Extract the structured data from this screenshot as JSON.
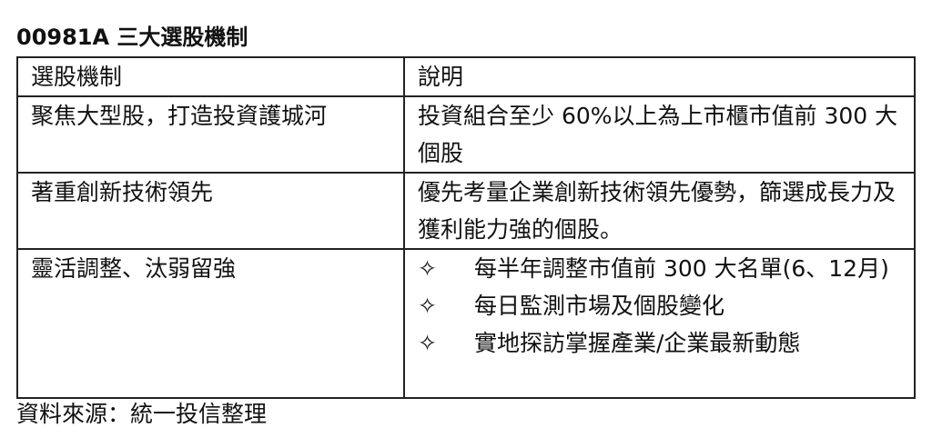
{
  "title": "00981A 三大選股機制",
  "table": {
    "headers": [
      "選股機制",
      "說明"
    ],
    "rows": [
      {
        "mechanism": "聚焦大型股，打造投資護城河",
        "description": "投資組合至少 60%以上為上市櫃市值前 300 大個股"
      },
      {
        "mechanism": "著重創新技術領先",
        "description": "優先考量企業創新技術領先優勢，篩選成長力及獲利能力強的個股。"
      },
      {
        "mechanism": "靈活調整、汰弱留強",
        "bullets": [
          "每半年調整市值前 300 大名單(6、12月)",
          "每日監測市場及個股變化",
          "實地探訪掌握產業/企業最新動態"
        ],
        "bullet_icon": "✧"
      }
    ]
  },
  "source": "資料來源：統一投信整理"
}
